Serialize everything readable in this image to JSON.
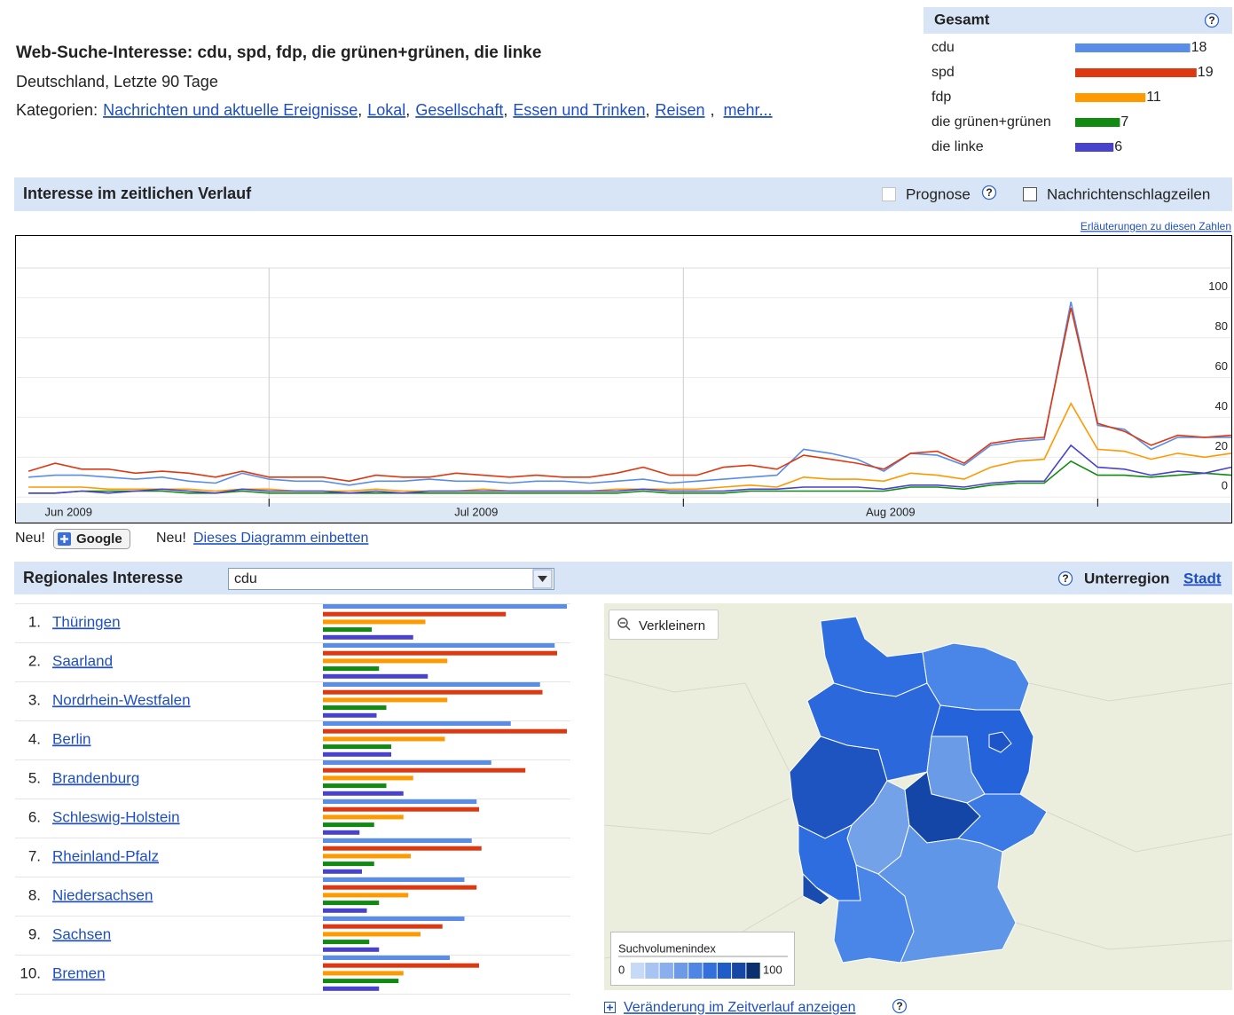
{
  "header": {
    "title": "Web-Suche-Interesse: cdu, spd, fdp, die grünen+grünen, die linke",
    "subtitle": "Deutschland, Letzte 90 Tage",
    "categories_label": "Kategorien:",
    "categories": [
      "Nachrichten und aktuelle Ereignisse",
      "Lokal",
      "Gesellschaft",
      "Essen und Trinken",
      "Reisen"
    ],
    "separator": ",",
    "more": "mehr..."
  },
  "help_icon": "?",
  "totals": {
    "title": "Gesamt",
    "values": [
      18,
      19,
      11,
      7,
      6
    ]
  },
  "timeline": {
    "title": "Interesse im zeitlichen Verlauf",
    "forecast": "Prognose",
    "news": "Nachrichtenschlagzeilen",
    "explanation": "Erläuterungen zu diesen Zahlen",
    "new_label": "Neu!",
    "google_button": "Google",
    "embed_link": "Dieses Diagramm einbetten"
  },
  "chart_data": {
    "type": "line",
    "x": [
      1,
      3,
      5,
      7,
      9,
      11,
      13,
      15,
      17,
      19,
      21,
      23,
      25,
      27,
      29,
      31,
      33,
      35,
      37,
      39,
      41,
      43,
      45,
      47,
      49,
      51,
      53,
      55,
      57,
      59,
      61,
      63,
      65,
      67,
      69,
      71,
      73,
      75,
      77,
      79,
      81,
      83,
      85,
      87,
      89,
      91
    ],
    "xlim": [
      0,
      91
    ],
    "xticks": [
      19,
      50,
      81
    ],
    "x_labels": [
      {
        "value": 4,
        "label": "Jun 2009"
      },
      {
        "value": 34.5,
        "label": "Jul 2009"
      },
      {
        "value": 65.5,
        "label": "Aug 2009"
      }
    ],
    "ylim": [
      -3,
      115
    ],
    "yticks": [
      0,
      20,
      40,
      60,
      80,
      100
    ],
    "grid": true,
    "series": [
      {
        "name": "cdu",
        "color": "#5a8de8",
        "values": [
          10,
          11,
          11,
          10,
          9,
          10,
          8,
          7,
          12,
          9,
          8,
          8,
          6,
          8,
          8,
          9,
          8,
          8,
          7,
          8,
          8,
          7,
          8,
          9,
          7,
          8,
          9,
          10,
          11,
          24,
          22,
          19,
          13,
          22,
          21,
          16,
          26,
          28,
          29,
          98,
          36,
          34,
          24,
          30,
          30,
          30
        ]
      },
      {
        "name": "spd",
        "color": "#dc3912",
        "values": [
          13,
          17,
          14,
          14,
          12,
          13,
          12,
          10,
          13,
          10,
          10,
          10,
          8,
          11,
          10,
          10,
          12,
          11,
          10,
          11,
          10,
          10,
          12,
          15,
          11,
          11,
          15,
          16,
          14,
          21,
          19,
          17,
          14,
          22,
          23,
          17,
          27,
          29,
          30,
          95,
          37,
          33,
          26,
          31,
          30,
          31
        ]
      },
      {
        "name": "fdp",
        "color": "#ff9900",
        "values": [
          5,
          5,
          5,
          4,
          4,
          4,
          4,
          3,
          4,
          4,
          3,
          3,
          3,
          4,
          3,
          3,
          3,
          4,
          3,
          3,
          3,
          3,
          4,
          4,
          4,
          4,
          5,
          6,
          5,
          10,
          9,
          9,
          8,
          12,
          11,
          9,
          15,
          18,
          19,
          47,
          24,
          23,
          19,
          22,
          20,
          22
        ]
      },
      {
        "name": "die grünen+grünen",
        "color": "#108a10",
        "values": [
          2,
          2,
          3,
          3,
          3,
          3,
          2,
          2,
          3,
          2,
          2,
          2,
          2,
          2,
          2,
          2,
          2,
          2,
          2,
          2,
          2,
          2,
          2,
          3,
          2,
          2,
          2,
          3,
          3,
          3,
          3,
          3,
          3,
          5,
          5,
          4,
          6,
          7,
          7,
          18,
          11,
          11,
          10,
          11,
          12,
          11
        ]
      },
      {
        "name": "die linke",
        "color": "#4942cc",
        "values": [
          2,
          2,
          3,
          2,
          3,
          4,
          3,
          2,
          4,
          3,
          3,
          3,
          2,
          3,
          2,
          3,
          3,
          3,
          3,
          3,
          3,
          3,
          3,
          4,
          3,
          3,
          3,
          4,
          4,
          5,
          5,
          5,
          4,
          6,
          6,
          5,
          7,
          8,
          8,
          26,
          15,
          14,
          11,
          13,
          12,
          15
        ]
      }
    ]
  },
  "regional": {
    "title": "Regionales Interesse",
    "selected": "cdu",
    "subregion_label": "Unterregion",
    "city_link": "Stadt",
    "xlim": [
      0,
      100
    ],
    "rows": [
      {
        "rank": "1.",
        "name": "Thüringen",
        "values": [
          100,
          75,
          42,
          20,
          37
        ]
      },
      {
        "rank": "2.",
        "name": "Saarland",
        "values": [
          95,
          96,
          51,
          23,
          43
        ]
      },
      {
        "rank": "3.",
        "name": "Nordrhein-Westfalen",
        "values": [
          89,
          90,
          51,
          26,
          22
        ]
      },
      {
        "rank": "4.",
        "name": "Berlin",
        "values": [
          77,
          100,
          50,
          28,
          28
        ]
      },
      {
        "rank": "5.",
        "name": "Brandenburg",
        "values": [
          69,
          83,
          37,
          26,
          33
        ]
      },
      {
        "rank": "6.",
        "name": "Schleswig-Holstein",
        "values": [
          63,
          64,
          33,
          21,
          15
        ]
      },
      {
        "rank": "7.",
        "name": "Rheinland-Pfalz",
        "values": [
          61,
          65,
          36,
          21,
          16
        ]
      },
      {
        "rank": "8.",
        "name": "Niedersachsen",
        "values": [
          58,
          63,
          35,
          23,
          18
        ]
      },
      {
        "rank": "9.",
        "name": "Sachsen",
        "values": [
          58,
          49,
          40,
          19,
          23
        ]
      },
      {
        "rank": "10.",
        "name": "Bremen",
        "values": [
          52,
          64,
          33,
          31,
          23
        ]
      }
    ],
    "zoom_out": "Verkleinern",
    "legend_title": "Suchvolumenindex",
    "legend_min": 0,
    "legend_max": 100,
    "change_link": "Veränderung im Zeitverlauf anzeigen"
  }
}
